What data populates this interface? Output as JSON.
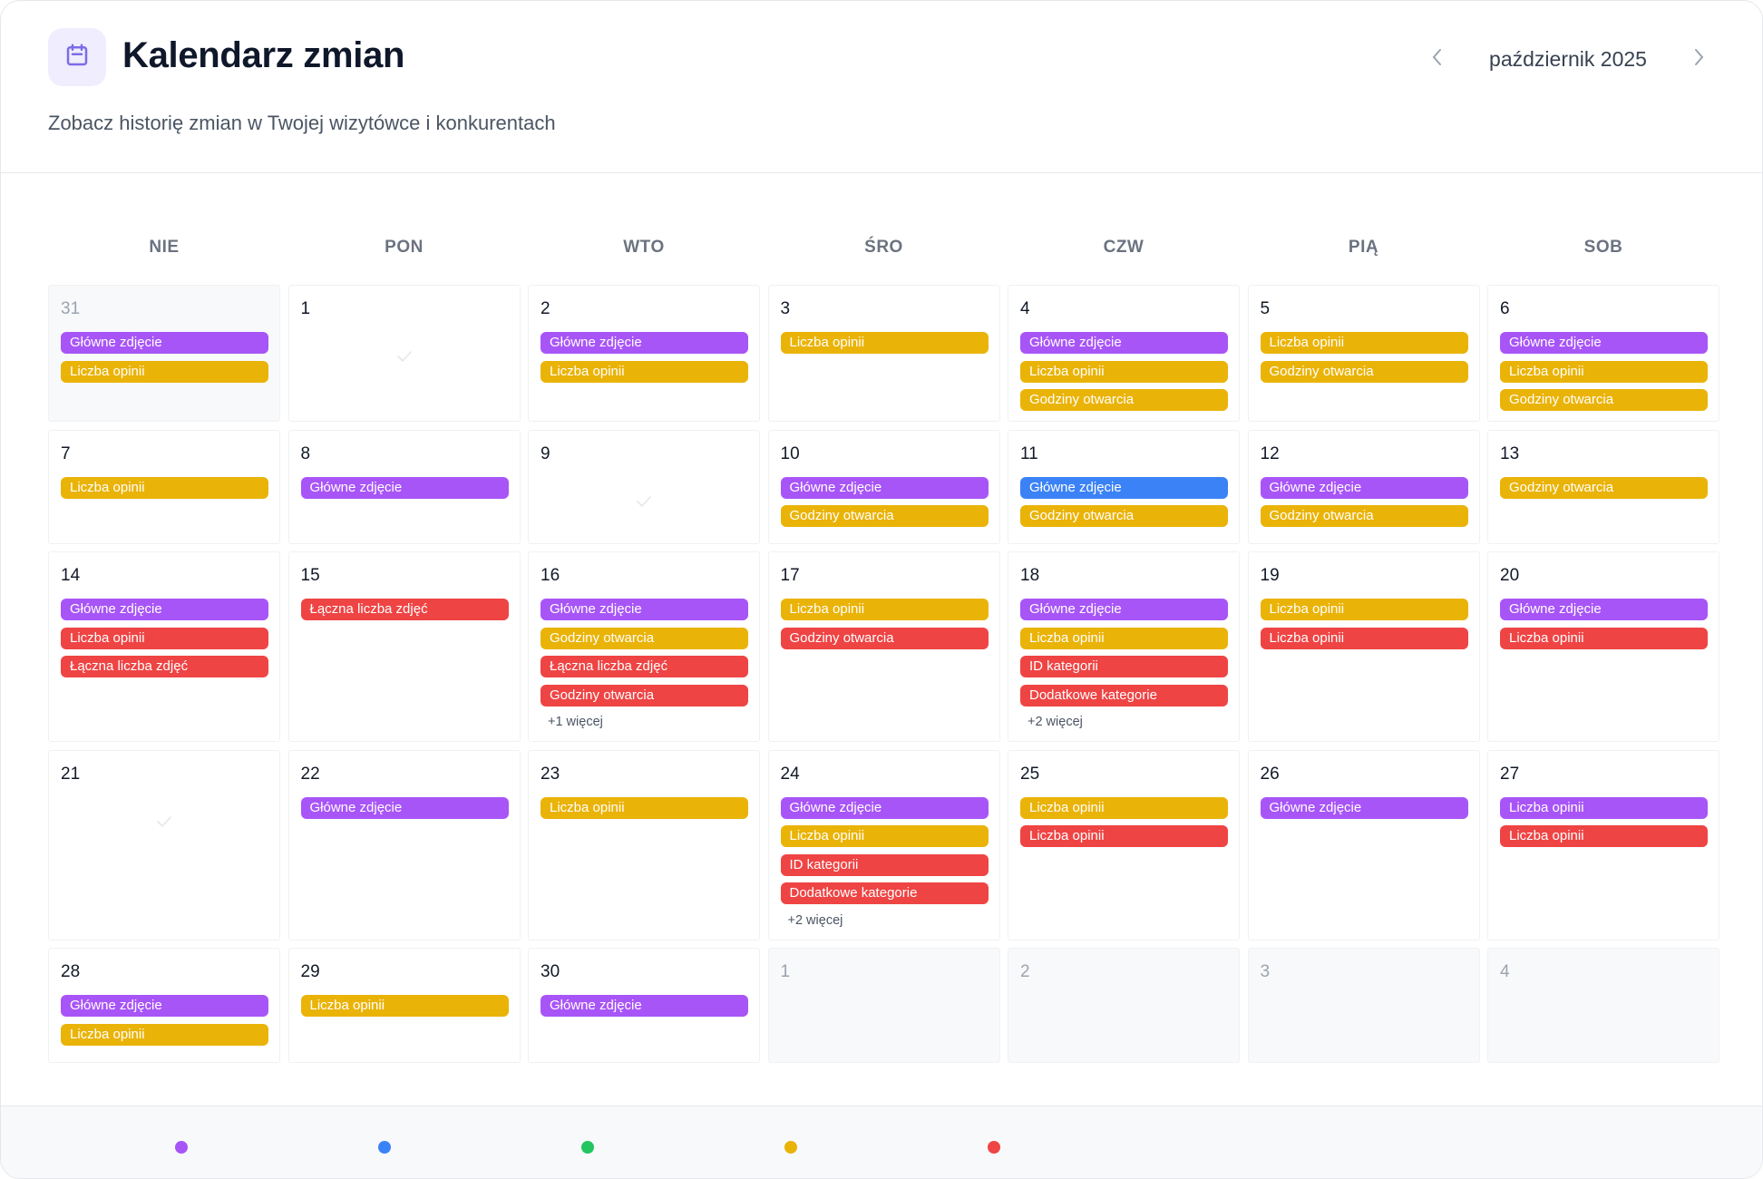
{
  "header": {
    "icon": "calendar-icon",
    "title": "Kalendarz zmian",
    "subtitle": "Zobacz historię zmian w Twojej wizytówce i konkurentach",
    "month": "październik 2025",
    "prev_icon": "chevron-left-icon",
    "next_icon": "chevron-right-icon"
  },
  "colors": {
    "purple": "#a855f7",
    "yellow": "#eab308",
    "red": "#ef4444",
    "blue": "#3b82f6",
    "green": "#22c55e",
    "accent_icon": "#7c6ce8",
    "icon_bg": "#efedfe"
  },
  "weekdays": [
    "NIE",
    "PON",
    "WTO",
    "ŚRO",
    "CZW",
    "PIĄ",
    "SOB"
  ],
  "weeks": [
    [
      {
        "day": "31",
        "outside": true,
        "events": [
          {
            "label": "Główne zdjęcie",
            "color": "purple"
          },
          {
            "label": "Liczba opinii",
            "color": "yellow"
          }
        ]
      },
      {
        "day": "1",
        "empty": true,
        "events": []
      },
      {
        "day": "2",
        "events": [
          {
            "label": "Główne zdjęcie",
            "color": "purple"
          },
          {
            "label": "Liczba opinii",
            "color": "yellow"
          }
        ]
      },
      {
        "day": "3",
        "events": [
          {
            "label": "Liczba opinii",
            "color": "yellow"
          }
        ]
      },
      {
        "day": "4",
        "events": [
          {
            "label": "Główne zdjęcie",
            "color": "purple"
          },
          {
            "label": "Liczba opinii",
            "color": "yellow"
          },
          {
            "label": "Godziny otwarcia",
            "color": "yellow"
          }
        ]
      },
      {
        "day": "5",
        "events": [
          {
            "label": "Liczba opinii",
            "color": "yellow"
          },
          {
            "label": "Godziny otwarcia",
            "color": "yellow"
          }
        ]
      },
      {
        "day": "6",
        "events": [
          {
            "label": "Główne zdjęcie",
            "color": "purple"
          },
          {
            "label": "Liczba opinii",
            "color": "yellow"
          },
          {
            "label": "Godziny otwarcia",
            "color": "yellow"
          }
        ]
      }
    ],
    [
      {
        "day": "7",
        "events": [
          {
            "label": "Liczba opinii",
            "color": "yellow"
          }
        ]
      },
      {
        "day": "8",
        "events": [
          {
            "label": "Główne zdjęcie",
            "color": "purple"
          }
        ]
      },
      {
        "day": "9",
        "empty": true,
        "events": []
      },
      {
        "day": "10",
        "events": [
          {
            "label": "Główne zdjęcie",
            "color": "purple"
          },
          {
            "label": "Godziny otwarcia",
            "color": "yellow"
          }
        ]
      },
      {
        "day": "11",
        "events": [
          {
            "label": "Główne zdjęcie",
            "color": "blue"
          },
          {
            "label": "Godziny otwarcia",
            "color": "yellow"
          }
        ]
      },
      {
        "day": "12",
        "events": [
          {
            "label": "Główne zdjęcie",
            "color": "purple"
          },
          {
            "label": "Godziny otwarcia",
            "color": "yellow"
          }
        ]
      },
      {
        "day": "13",
        "events": [
          {
            "label": "Godziny otwarcia",
            "color": "yellow"
          }
        ]
      }
    ],
    [
      {
        "day": "14",
        "events": [
          {
            "label": "Główne zdjęcie",
            "color": "purple"
          },
          {
            "label": "Liczba opinii",
            "color": "red"
          },
          {
            "label": "Łączna liczba zdjęć",
            "color": "red"
          }
        ]
      },
      {
        "day": "15",
        "events": [
          {
            "label": "Łączna liczba zdjęć",
            "color": "red"
          }
        ]
      },
      {
        "day": "16",
        "events": [
          {
            "label": "Główne zdjęcie",
            "color": "purple"
          },
          {
            "label": "Godziny otwarcia",
            "color": "yellow"
          },
          {
            "label": "Łączna liczba zdjęć",
            "color": "red"
          },
          {
            "label": "Godziny otwarcia",
            "color": "red"
          }
        ],
        "more": "+1 więcej"
      },
      {
        "day": "17",
        "events": [
          {
            "label": "Liczba opinii",
            "color": "yellow"
          },
          {
            "label": "Godziny otwarcia",
            "color": "red"
          }
        ]
      },
      {
        "day": "18",
        "events": [
          {
            "label": "Główne zdjęcie",
            "color": "purple"
          },
          {
            "label": "Liczba opinii",
            "color": "yellow"
          },
          {
            "label": "ID kategorii",
            "color": "red"
          },
          {
            "label": "Dodatkowe kategorie",
            "color": "red"
          }
        ],
        "more": "+2 więcej"
      },
      {
        "day": "19",
        "events": [
          {
            "label": "Liczba opinii",
            "color": "yellow"
          },
          {
            "label": "Liczba opinii",
            "color": "red"
          }
        ]
      },
      {
        "day": "20",
        "events": [
          {
            "label": "Główne zdjęcie",
            "color": "purple"
          },
          {
            "label": "Liczba opinii",
            "color": "red"
          }
        ]
      }
    ],
    [
      {
        "day": "21",
        "empty": true,
        "events": []
      },
      {
        "day": "22",
        "events": [
          {
            "label": "Główne zdjęcie",
            "color": "purple"
          }
        ]
      },
      {
        "day": "23",
        "events": [
          {
            "label": "Liczba opinii",
            "color": "yellow"
          }
        ]
      },
      {
        "day": "24",
        "events": [
          {
            "label": "Główne zdjęcie",
            "color": "purple"
          },
          {
            "label": "Liczba opinii",
            "color": "yellow"
          },
          {
            "label": "ID kategorii",
            "color": "red"
          },
          {
            "label": "Dodatkowe kategorie",
            "color": "red"
          }
        ],
        "more": "+2 więcej"
      },
      {
        "day": "25",
        "events": [
          {
            "label": "Liczba opinii",
            "color": "yellow"
          },
          {
            "label": "Liczba opinii",
            "color": "red"
          }
        ]
      },
      {
        "day": "26",
        "events": [
          {
            "label": "Główne zdjęcie",
            "color": "purple"
          }
        ]
      },
      {
        "day": "27",
        "events": [
          {
            "label": "Liczba opinii",
            "color": "purple"
          },
          {
            "label": "Liczba opinii",
            "color": "red"
          }
        ]
      }
    ],
    [
      {
        "day": "28",
        "events": [
          {
            "label": "Główne zdjęcie",
            "color": "purple"
          },
          {
            "label": "Liczba opinii",
            "color": "yellow"
          }
        ]
      },
      {
        "day": "29",
        "events": [
          {
            "label": "Liczba opinii",
            "color": "yellow"
          }
        ]
      },
      {
        "day": "30",
        "events": [
          {
            "label": "Główne zdjęcie",
            "color": "purple"
          }
        ]
      },
      {
        "day": "1",
        "outside": true,
        "events": []
      },
      {
        "day": "2",
        "outside": true,
        "events": []
      },
      {
        "day": "3",
        "outside": true,
        "events": []
      },
      {
        "day": "4",
        "outside": true,
        "events": []
      }
    ]
  ],
  "legend": {
    "visible_dots": [
      "purple",
      "blue",
      "green",
      "yellow",
      "red"
    ]
  }
}
